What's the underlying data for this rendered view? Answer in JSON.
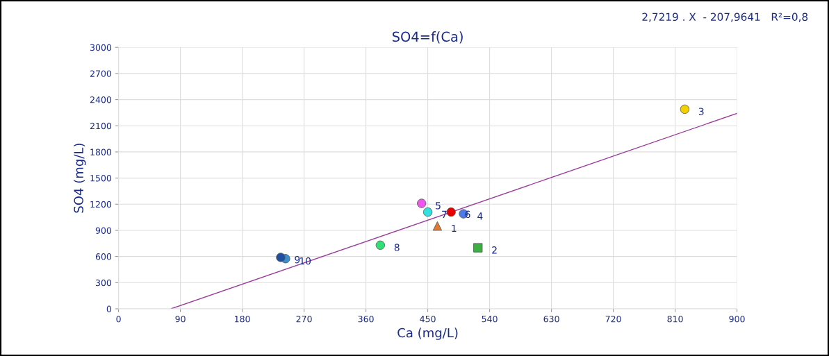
{
  "chart_data": {
    "type": "scatter",
    "title": "SO4=f(Ca)",
    "xlabel": "Ca (mg/L)",
    "ylabel": "SO4 (mg/L)",
    "annotations": [
      "2,7219 . X  - 207,9641   R²=0,8"
    ],
    "xlim": [
      0,
      900
    ],
    "xticks": [
      0,
      90,
      180,
      270,
      360,
      450,
      540,
      630,
      720,
      810,
      900
    ],
    "ylim": [
      0,
      3000
    ],
    "yticks": [
      0,
      300,
      600,
      900,
      1200,
      1500,
      1800,
      2100,
      2400,
      2700,
      3000
    ],
    "grid": true,
    "series": [
      {
        "name": "1",
        "color": "#e07a30",
        "marker": "triangle",
        "x": [
          464
        ],
        "values": [
          950
        ]
      },
      {
        "name": "2",
        "color": "#3cb043",
        "marker": "square",
        "x": [
          523
        ],
        "values": [
          700
        ]
      },
      {
        "name": "3",
        "color": "#f5d000",
        "x": [
          824
        ],
        "values": [
          2290
        ]
      },
      {
        "name": "4",
        "color": "#4a7be8",
        "marker": "circle",
        "x": [
          502
        ],
        "values": [
          1090
        ]
      },
      {
        "name": "5",
        "color": "#ee55ee",
        "marker": "circle",
        "x": [
          441
        ],
        "values": [
          1210
        ]
      },
      {
        "name": "6",
        "color": "#e80000",
        "marker": "circle",
        "x": [
          484
        ],
        "values": [
          1110
        ]
      },
      {
        "name": "7",
        "color": "#33e0e0",
        "marker": "circle",
        "x": [
          450
        ],
        "values": [
          1110
        ]
      },
      {
        "name": "8",
        "color": "#33dd77",
        "marker": "circle",
        "x": [
          381
        ],
        "values": [
          730
        ]
      },
      {
        "name": "9",
        "color": "#1f4fa0",
        "marker": "circle",
        "x": [
          236
        ],
        "values": [
          590
        ]
      },
      {
        "name": "10",
        "color": "#3a8fd0",
        "marker": "circle",
        "x": [
          243
        ],
        "values": [
          575
        ]
      },
      {
        "type": "line",
        "color": "#9b3a9b",
        "x": [
          77,
          900
        ],
        "values": [
          2,
          2242
        ]
      }
    ]
  }
}
